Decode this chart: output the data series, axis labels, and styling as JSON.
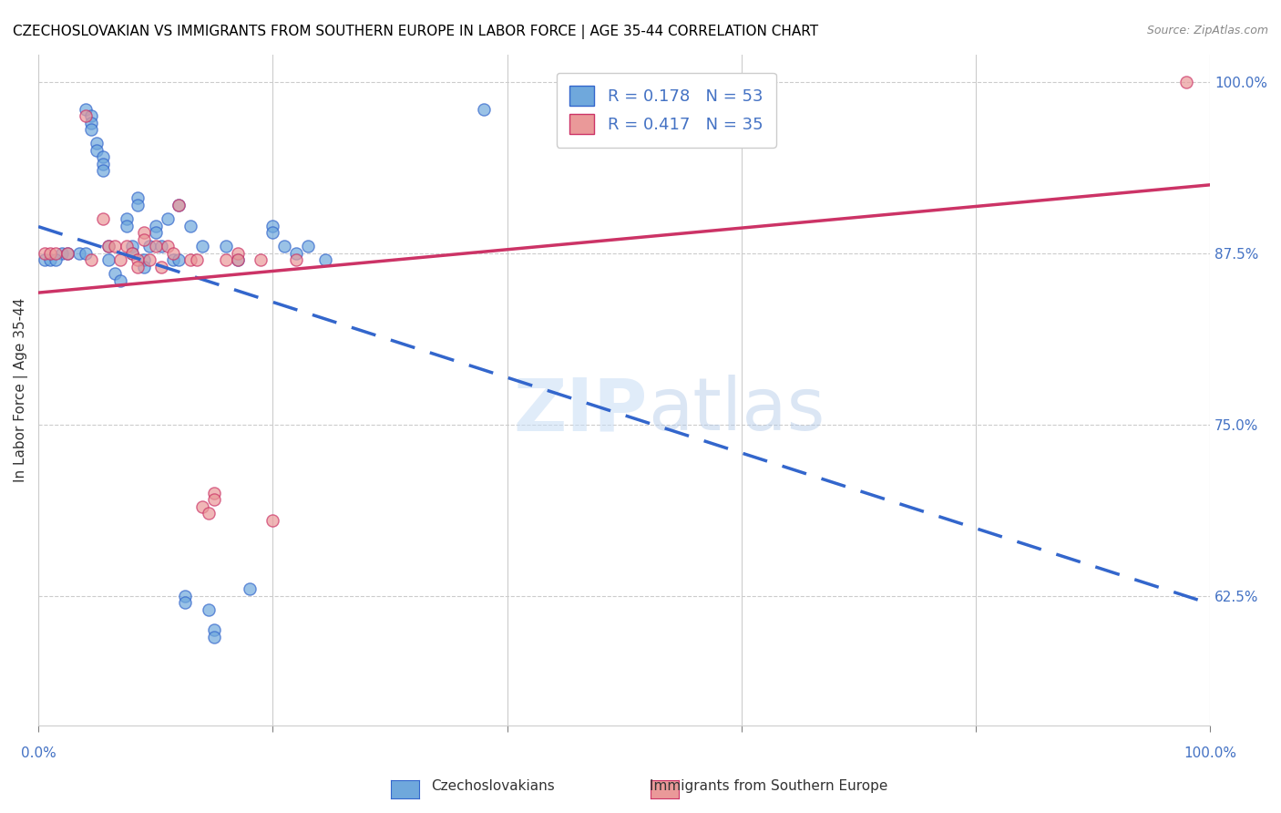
{
  "title": "CZECHOSLOVAKIAN VS IMMIGRANTS FROM SOUTHERN EUROPE IN LABOR FORCE | AGE 35-44 CORRELATION CHART",
  "source": "Source: ZipAtlas.com",
  "ylabel": "In Labor Force | Age 35-44",
  "ylabel_ticks": [
    "100.0%",
    "87.5%",
    "75.0%",
    "62.5%"
  ],
  "ylabel_tick_vals": [
    1.0,
    0.875,
    0.75,
    0.625
  ],
  "xmin": 0.0,
  "xmax": 1.0,
  "ymin": 0.53,
  "ymax": 1.02,
  "blue_R": 0.178,
  "blue_N": 53,
  "pink_R": 0.417,
  "pink_N": 35,
  "blue_color": "#6fa8dc",
  "pink_color": "#ea9999",
  "blue_line_color": "#3366cc",
  "pink_line_color": "#cc3366",
  "legend_label_blue": "Czechoslovakians",
  "legend_label_pink": "Immigrants from Southern Europe",
  "watermark_zip": "ZIP",
  "watermark_atlas": "atlas",
  "blue_scatter_x": [
    0.02,
    0.04,
    0.045,
    0.045,
    0.045,
    0.05,
    0.05,
    0.055,
    0.055,
    0.055,
    0.06,
    0.06,
    0.065,
    0.07,
    0.075,
    0.075,
    0.08,
    0.08,
    0.085,
    0.085,
    0.09,
    0.09,
    0.095,
    0.1,
    0.1,
    0.105,
    0.11,
    0.115,
    0.12,
    0.12,
    0.125,
    0.125,
    0.13,
    0.14,
    0.145,
    0.15,
    0.15,
    0.16,
    0.17,
    0.18,
    0.2,
    0.2,
    0.21,
    0.22,
    0.23,
    0.245,
    0.38,
    0.005,
    0.01,
    0.015,
    0.025,
    0.035,
    0.04
  ],
  "blue_scatter_y": [
    0.875,
    0.98,
    0.975,
    0.97,
    0.965,
    0.955,
    0.95,
    0.945,
    0.94,
    0.935,
    0.88,
    0.87,
    0.86,
    0.855,
    0.9,
    0.895,
    0.88,
    0.875,
    0.915,
    0.91,
    0.87,
    0.865,
    0.88,
    0.895,
    0.89,
    0.88,
    0.9,
    0.87,
    0.91,
    0.87,
    0.625,
    0.62,
    0.895,
    0.88,
    0.615,
    0.6,
    0.595,
    0.88,
    0.87,
    0.63,
    0.895,
    0.89,
    0.88,
    0.875,
    0.88,
    0.87,
    0.98,
    0.87,
    0.87,
    0.87,
    0.875,
    0.875,
    0.875
  ],
  "pink_scatter_x": [
    0.04,
    0.045,
    0.055,
    0.06,
    0.065,
    0.07,
    0.075,
    0.08,
    0.085,
    0.085,
    0.09,
    0.09,
    0.095,
    0.1,
    0.105,
    0.11,
    0.115,
    0.12,
    0.13,
    0.135,
    0.14,
    0.145,
    0.15,
    0.15,
    0.16,
    0.17,
    0.17,
    0.19,
    0.2,
    0.22,
    0.005,
    0.01,
    0.015,
    0.98,
    0.025
  ],
  "pink_scatter_y": [
    0.975,
    0.87,
    0.9,
    0.88,
    0.88,
    0.87,
    0.88,
    0.875,
    0.87,
    0.865,
    0.89,
    0.885,
    0.87,
    0.88,
    0.865,
    0.88,
    0.875,
    0.91,
    0.87,
    0.87,
    0.69,
    0.685,
    0.7,
    0.695,
    0.87,
    0.875,
    0.87,
    0.87,
    0.68,
    0.87,
    0.875,
    0.875,
    0.875,
    1.0,
    0.875
  ],
  "grid_color": "#cccccc",
  "background_color": "#ffffff",
  "title_color": "#000000",
  "tick_color": "#4472c4"
}
